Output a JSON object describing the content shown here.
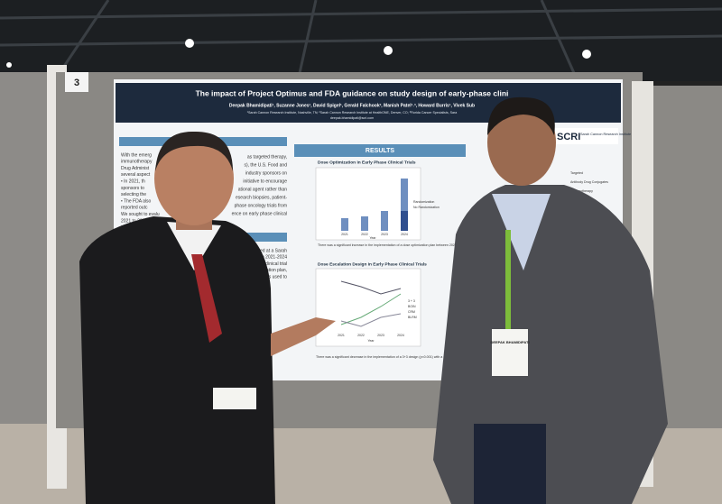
{
  "board_number": "3",
  "poster": {
    "title": "The impact of Project Optimus and FDA guidance on study design of early-phase clini",
    "authors": "Deepak Bhamidipati¹, Suzanne Jones¹, David Spigel¹, Gerald Falchook², Manish Patel¹˒³, Howard Burris¹, Vivek Sub",
    "affiliations": "¹Sarah Cannon Research Institute, Nashville, TN; ²Sarah Cannon Research Institute at HealthONE, Denver, CO; ³Florida Cancer Specialists, Sara",
    "email": "deepak.bhamidipati@scri.com",
    "logo": "SCRI",
    "logo_text": "Sarah Cannon Research Institute",
    "intro_lines": [
      "With the emerg",
      "immunotherapy",
      "Drug Administ",
      "several aspect",
      "• In 2021, th",
      "sponsors to",
      "selecting the",
      "• The FDA also",
      "reported outc",
      "We sought to evalu",
      "2021 to 2024 to de",
      "trials"
    ],
    "intro_right_lines": [
      "as targeted therapy,",
      "s), the U.S. Food and",
      "industry sponsors on",
      "initiative to encourage",
      "ational agent rather than",
      "esearch biopsies, patient-",
      "phase oncology trials from",
      "ence on early phase clinical"
    ],
    "methods_lines": [
      "ncology trials activated at a Sarah",
      "iodtrials activated between 2021-2024",
      "ach clinical trial",
      "imization plan,",
      "ses used to"
    ],
    "results_heading": "RESULTS",
    "chart1_title": "Dose Optimization in Early Phase Clinical Trials",
    "chart1_legend": [
      "Randomization",
      "No Randomization"
    ],
    "chart1_caption": "There was a significant increase in the implementation of a dose optimization plan between 2021 and 2024 (p<0.001). A median of 40 additional patients were anticipated for the dose optimization portion.",
    "chart2_title": "Dose Escalation Design in Early Phase Clinical Trials",
    "chart2_legend": [
      "3 + 3",
      "BOIN",
      "CRM",
      "BLRM"
    ],
    "chart2_caption": "There was a significant decrease in the implementation of a 3+3 design (p<0.001) with a concordant increase in the implementation of a BOIN Design (p<0.01)",
    "years": [
      "2021",
      "2022",
      "2023",
      "2024"
    ],
    "year_axis": "Year",
    "right_legend": [
      "Targeted",
      "Antibody Drug Conjugates",
      "Immunotherapy"
    ]
  },
  "badge_right": "DEEPAK BHAMIDIPATI"
}
